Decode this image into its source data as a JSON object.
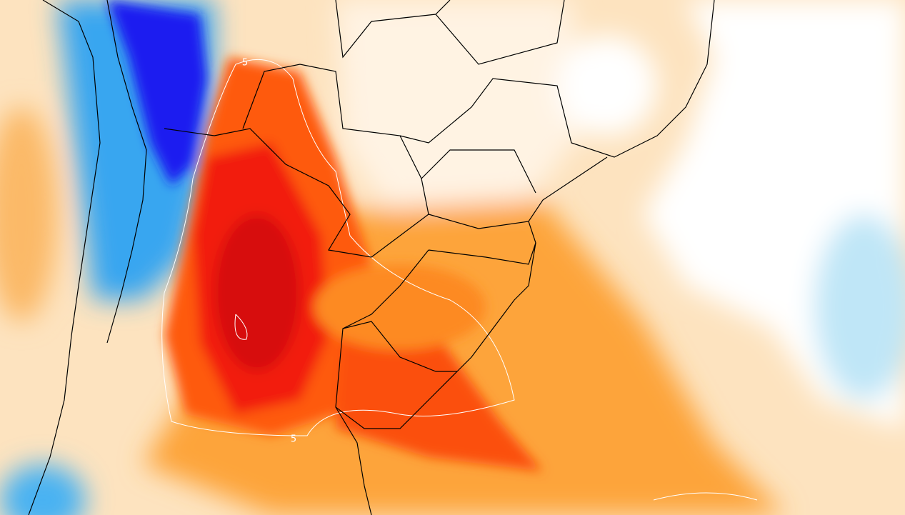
{
  "map": {
    "contour_labels": [
      "5",
      "5"
    ]
  }
}
